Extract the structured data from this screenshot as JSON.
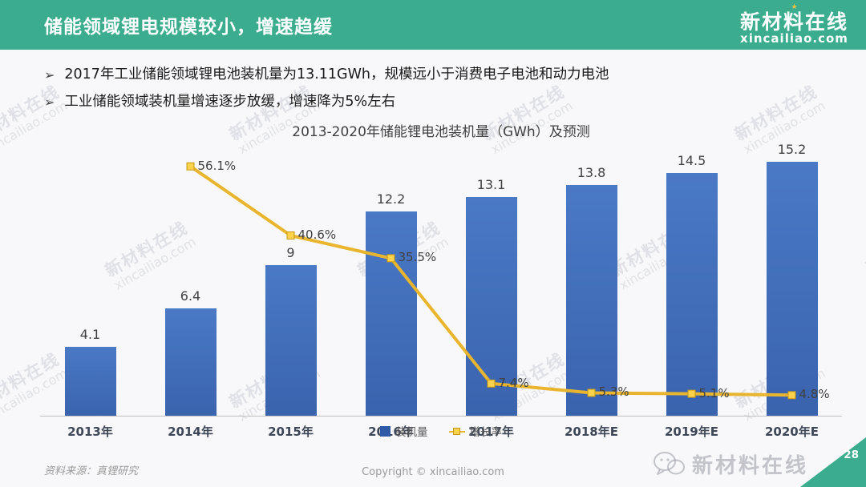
{
  "header": {
    "title": "储能领域锂电规模较小，增速趋缓",
    "logo": {
      "name": "新材料在线",
      "domain": "xincailiao.com",
      "star_icon": "★"
    }
  },
  "bullets": [
    "2017年工业储能领域锂电池装机量为13.11GWh，规模远小于消费电子电池和动力电池",
    "工业储能领域装机量增速逐步放缓，增速降为5%左右"
  ],
  "bullet_icon": "➢",
  "chart_data": {
    "type": "bar",
    "title": "2013-2020年储能锂电池装机量（GWh）及预测",
    "categories": [
      "2013年",
      "2014年",
      "2015年",
      "2016年",
      "2017年",
      "2018年E",
      "2019年E",
      "2020年E"
    ],
    "series": [
      {
        "name": "装机量",
        "type": "bar",
        "values": [
          4.1,
          6.4,
          9,
          12.2,
          13.1,
          13.8,
          14.5,
          15.2
        ],
        "labels": [
          "4.1",
          "6.4",
          "9",
          "12.2",
          "13.1",
          "13.8",
          "14.5",
          "15.2"
        ],
        "color": "#4472c4",
        "axis_max": 16
      },
      {
        "name": "增长率",
        "type": "line",
        "values": [
          null,
          56.1,
          40.6,
          35.5,
          7.4,
          5.3,
          5.1,
          4.8
        ],
        "labels": [
          null,
          "56.1%",
          "40.6%",
          "35.5%",
          "7.4%",
          "5.3%",
          "5.1%",
          "4.8%"
        ],
        "color": "#ffc000",
        "axis_max": 60
      }
    ],
    "ylim": [
      0,
      16
    ],
    "y2lim": [
      0,
      60
    ],
    "grid": false,
    "legend_position": "bottom"
  },
  "watermark": {
    "line1": "新材料在线",
    "line2": "xincailiao.com"
  },
  "footer": {
    "source": "资料来源：真锂研究",
    "copyright": "Copyright © xincailiao.com",
    "brand_watermark": "新材料在线",
    "page_number": "28"
  },
  "colors": {
    "accent_green": "#3bad8e",
    "bar_blue": "#4472c4",
    "line_yellow": "#ffc000"
  }
}
